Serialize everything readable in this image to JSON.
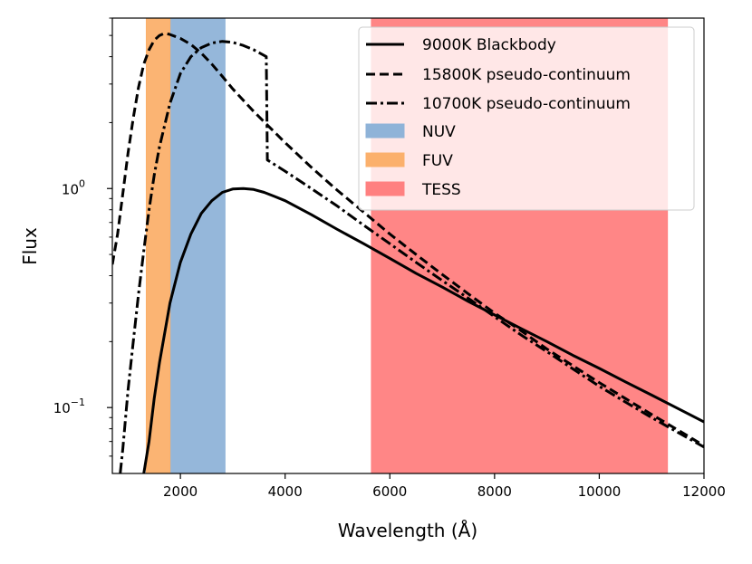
{
  "chart_data": {
    "type": "line",
    "xlabel": "Wavelength (Å)",
    "ylabel": "Flux",
    "xlim": [
      700,
      12000
    ],
    "ylim": [
      0.05,
      6.0
    ],
    "yscale": "log",
    "x_ticks": [
      2000,
      4000,
      6000,
      8000,
      10000,
      12000
    ],
    "x_tick_labels": [
      "2000",
      "4000",
      "6000",
      "8000",
      "10000",
      "12000"
    ],
    "y_ticks": [
      {
        "value": 1.0,
        "base": "10",
        "exp": "0"
      },
      {
        "value": 0.1,
        "base": "10",
        "exp": "−1"
      }
    ],
    "bands": [
      {
        "name": "NUV",
        "x0": 1800,
        "x1": 2850,
        "color": "#8fb3d8"
      },
      {
        "name": "FUV",
        "x0": 1350,
        "x1": 1800,
        "color": "#fbb06c"
      },
      {
        "name": "TESS",
        "x0": 5650,
        "x1": 11300,
        "color": "#ff8080"
      }
    ],
    "series": [
      {
        "name": "9000K Blackbody",
        "style": "solid",
        "x": [
          1300,
          1400,
          1500,
          1600,
          1800,
          2000,
          2200,
          2400,
          2600,
          2800,
          3000,
          3200,
          3400,
          3600,
          3800,
          4000,
          4500,
          5000,
          5500,
          6000,
          6500,
          7000,
          7500,
          8000,
          8500,
          9000,
          9500,
          10000,
          10500,
          11000,
          11500,
          12000
        ],
        "values": [
          0.05,
          0.07,
          0.11,
          0.16,
          0.3,
          0.46,
          0.62,
          0.77,
          0.88,
          0.96,
          0.995,
          1.0,
          0.99,
          0.96,
          0.92,
          0.88,
          0.76,
          0.65,
          0.56,
          0.48,
          0.41,
          0.355,
          0.305,
          0.265,
          0.23,
          0.2,
          0.173,
          0.151,
          0.131,
          0.114,
          0.099,
          0.086
        ]
      },
      {
        "name": "15800K pseudo-continuum",
        "style": "dashed",
        "x": [
          700,
          800,
          900,
          1000,
          1100,
          1200,
          1300,
          1400,
          1500,
          1600,
          1700,
          1800,
          2000,
          2200,
          2400,
          2600,
          2800,
          3000,
          3400,
          4000,
          4500,
          5000,
          5500,
          6000,
          6500,
          7000,
          7500,
          8000,
          8500,
          9000,
          9500,
          10000,
          10500,
          11000,
          11500,
          12000
        ],
        "values": [
          0.45,
          0.62,
          0.95,
          1.45,
          2.1,
          2.9,
          3.7,
          4.3,
          4.75,
          5.0,
          5.12,
          5.05,
          4.85,
          4.55,
          4.15,
          3.7,
          3.25,
          2.85,
          2.25,
          1.62,
          1.25,
          0.98,
          0.78,
          0.62,
          0.5,
          0.405,
          0.33,
          0.27,
          0.225,
          0.185,
          0.155,
          0.13,
          0.11,
          0.093,
          0.079,
          0.067
        ]
      },
      {
        "name": "10700K pseudo-continuum",
        "style": "dashdot",
        "x": [
          850,
          900,
          1000,
          1100,
          1200,
          1300,
          1400,
          1500,
          1600,
          1800,
          2000,
          2200,
          2400,
          2600,
          2800,
          3000,
          3200,
          3400,
          3640,
          3660,
          4000,
          4500,
          5000,
          5500,
          6000,
          6500,
          7000,
          7500,
          8000,
          8500,
          9000,
          9500,
          10000,
          10500,
          11000,
          11500,
          12000
        ],
        "values": [
          0.05,
          0.065,
          0.12,
          0.2,
          0.33,
          0.52,
          0.8,
          1.15,
          1.55,
          2.45,
          3.35,
          4.0,
          4.4,
          4.62,
          4.7,
          4.65,
          4.5,
          4.3,
          4.0,
          1.35,
          1.2,
          1.0,
          0.83,
          0.68,
          0.56,
          0.46,
          0.38,
          0.315,
          0.26,
          0.215,
          0.18,
          0.15,
          0.125,
          0.106,
          0.09,
          0.077,
          0.066
        ]
      }
    ],
    "legend": {
      "position": "top-right",
      "entries": [
        "9000K Blackbody",
        "15800K pseudo-continuum",
        "10700K pseudo-continuum",
        "NUV",
        "FUV",
        "TESS"
      ]
    }
  }
}
